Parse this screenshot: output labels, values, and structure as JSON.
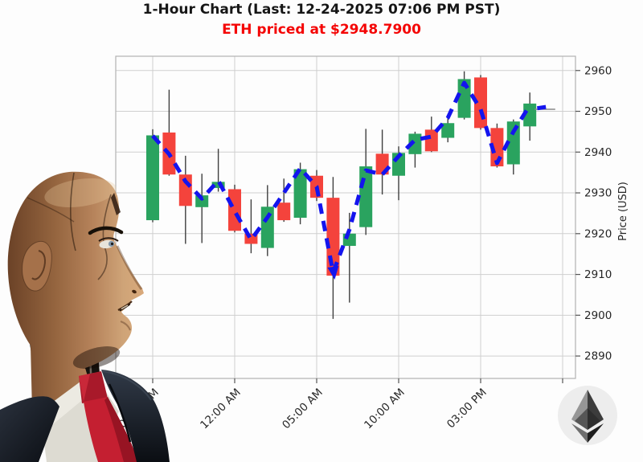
{
  "header": {
    "title": "1-Hour Chart (Last: 12-24-2025 07:06 PM PST)",
    "subtitle": "ETH priced at $2948.7900",
    "subtitle_color": "#f40505",
    "title_color": "#161616"
  },
  "chart_data": {
    "type": "candlestick",
    "title": "1-Hour Chart (Last: 12-24-2025 07:06 PM PST)",
    "subtitle": "ETH priced at $2948.7900",
    "ylabel": "Price (USD)",
    "xlabel": "",
    "grid": true,
    "ylim": [
      2884.5,
      2963.5
    ],
    "y_ticks": [
      2890,
      2900,
      2910,
      2920,
      2930,
      2940,
      2950,
      2960
    ],
    "x_ticks": [
      {
        "index": 0,
        "label": "07:00 PM"
      },
      {
        "index": 5,
        "label": "12:00 AM"
      },
      {
        "index": 10,
        "label": "05:00 AM"
      },
      {
        "index": 15,
        "label": "10:00 AM"
      },
      {
        "index": 20,
        "label": "03:00 PM"
      },
      {
        "index": 25,
        "label": ""
      }
    ],
    "candles": [
      {
        "o": 2923.3,
        "h": 2945.6,
        "l": 2922.8,
        "c": 2944.1
      },
      {
        "o": 2944.8,
        "h": 2955.3,
        "l": 2934.2,
        "c": 2934.5
      },
      {
        "o": 2934.5,
        "h": 2939.1,
        "l": 2917.5,
        "c": 2926.8
      },
      {
        "o": 2926.5,
        "h": 2934.7,
        "l": 2917.7,
        "c": 2929.4
      },
      {
        "o": 2931.2,
        "h": 2940.8,
        "l": 2930.3,
        "c": 2932.7
      },
      {
        "o": 2930.9,
        "h": 2932.0,
        "l": 2920.3,
        "c": 2920.7
      },
      {
        "o": 2920.0,
        "h": 2928.4,
        "l": 2915.2,
        "c": 2917.5
      },
      {
        "o": 2916.5,
        "h": 2931.9,
        "l": 2914.5,
        "c": 2926.6
      },
      {
        "o": 2927.6,
        "h": 2933.5,
        "l": 2922.9,
        "c": 2923.3
      },
      {
        "o": 2923.9,
        "h": 2937.4,
        "l": 2922.3,
        "c": 2935.8
      },
      {
        "o": 2934.2,
        "h": 2935.6,
        "l": 2928.0,
        "c": 2928.8
      },
      {
        "o": 2928.8,
        "h": 2933.9,
        "l": 2899.1,
        "c": 2909.7
      },
      {
        "o": 2917.0,
        "h": 2925.1,
        "l": 2903.1,
        "c": 2920.0
      },
      {
        "o": 2921.6,
        "h": 2945.7,
        "l": 2919.7,
        "c": 2936.5
      },
      {
        "o": 2939.6,
        "h": 2945.5,
        "l": 2929.6,
        "c": 2934.5
      },
      {
        "o": 2934.2,
        "h": 2941.4,
        "l": 2928.2,
        "c": 2939.8
      },
      {
        "o": 2939.5,
        "h": 2945.0,
        "l": 2936.2,
        "c": 2944.5
      },
      {
        "o": 2945.5,
        "h": 2948.7,
        "l": 2940.0,
        "c": 2940.2
      },
      {
        "o": 2943.5,
        "h": 2949.1,
        "l": 2942.4,
        "c": 2947.1
      },
      {
        "o": 2948.4,
        "h": 2959.8,
        "l": 2948.0,
        "c": 2957.9
      },
      {
        "o": 2958.3,
        "h": 2958.9,
        "l": 2945.5,
        "c": 2945.9
      },
      {
        "o": 2945.9,
        "h": 2947.0,
        "l": 2936.2,
        "c": 2936.5
      },
      {
        "o": 2937.0,
        "h": 2948.0,
        "l": 2934.5,
        "c": 2947.5
      },
      {
        "o": 2946.3,
        "h": 2954.6,
        "l": 2942.8,
        "c": 2951.9
      }
    ],
    "ma_line": {
      "name": "moving-average",
      "values": [
        2944.0,
        2939.5,
        2932.8,
        2928.6,
        2933.0,
        2925.5,
        2918.5,
        2924.0,
        2930.0,
        2936.0,
        2931.5,
        2910.5,
        2921.0,
        2935.5,
        2934.5,
        2939.0,
        2943.0,
        2943.8,
        2948.4,
        2957.0,
        2950.5,
        2937.3,
        2945.0,
        2951.5
      ]
    },
    "last_marker": {
      "line_price": 2950.5,
      "dash_price": 2950.9
    },
    "colors": {
      "up": "#2aa35f",
      "down": "#f4433c",
      "ma": "#1414ee",
      "wick": "#3f3f3f",
      "grid": "#cfcfcf",
      "border": "#b3b3b3",
      "tick_text": "#262626",
      "plot_bg": "#fdfdfd"
    }
  },
  "decorations": {
    "robot": "android-robot-portrait",
    "eth_logo": "ethereum-logo"
  }
}
